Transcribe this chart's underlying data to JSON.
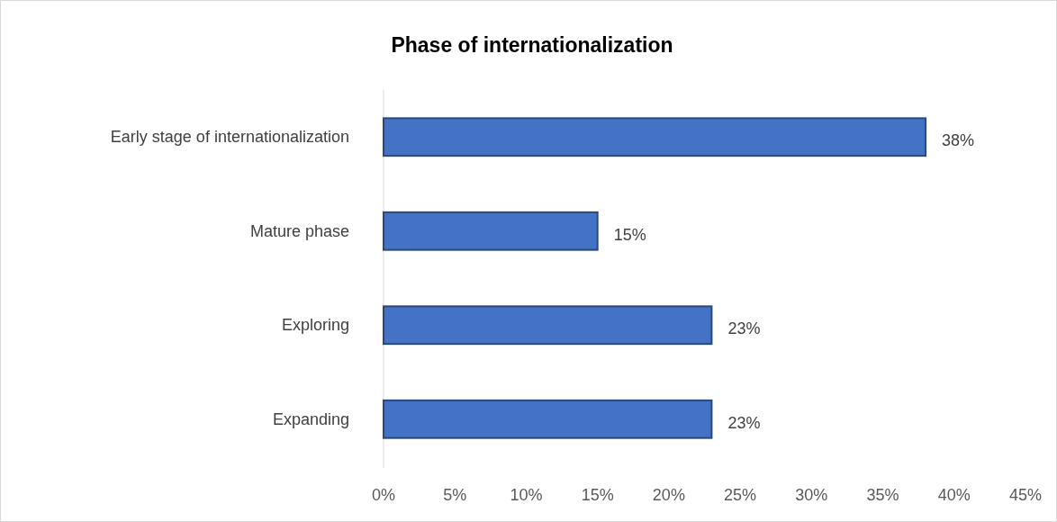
{
  "chart_data": {
    "type": "bar",
    "orientation": "horizontal",
    "title": "Phase of internationalization",
    "categories": [
      "Early stage of internationalization",
      "Mature phase",
      "Exploring",
      "Expanding"
    ],
    "values": [
      38,
      15,
      23,
      23
    ],
    "color": "#4472c4",
    "value_labels": [
      "38%",
      "15%",
      "23%",
      "23%"
    ],
    "xlim": [
      0,
      45
    ],
    "xticks": [
      {
        "value": 0,
        "label": "0%"
      },
      {
        "value": 5,
        "label": "5%"
      },
      {
        "value": 10,
        "label": "10%"
      },
      {
        "value": 15,
        "label": "15%"
      },
      {
        "value": 20,
        "label": "20%"
      },
      {
        "value": 25,
        "label": "25%"
      },
      {
        "value": 30,
        "label": "30%"
      },
      {
        "value": 35,
        "label": "35%"
      },
      {
        "value": 40,
        "label": "40%"
      },
      {
        "value": 45,
        "label": "45%"
      }
    ]
  }
}
